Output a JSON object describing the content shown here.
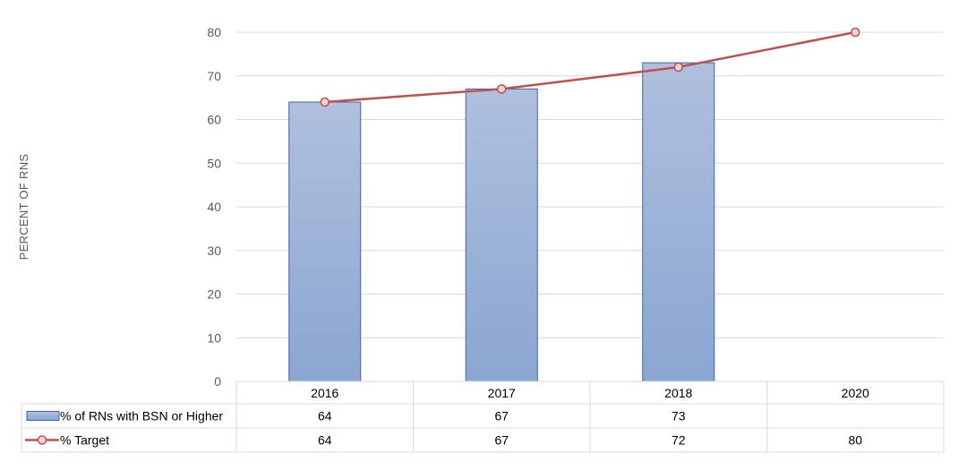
{
  "chart_data": {
    "type": "bar",
    "categories": [
      "2016",
      "2017",
      "2018",
      "2020"
    ],
    "series": [
      {
        "name": "% of RNs with BSN or Higher",
        "kind": "bar",
        "values": [
          64,
          67,
          73,
          null
        ],
        "color": "#95ACD6",
        "edge": "#3F64B0"
      },
      {
        "name": "% Target",
        "kind": "line",
        "values": [
          64,
          67,
          72,
          80
        ],
        "color": "#C0504D",
        "marker_fill": "#F9D4D4"
      }
    ],
    "ylabel": "PERCENT OF RNS",
    "ylim": [
      0,
      80
    ],
    "yticks": [
      0,
      10,
      20,
      30,
      40,
      50,
      60,
      70,
      80
    ],
    "grid": true,
    "data_table": true
  }
}
